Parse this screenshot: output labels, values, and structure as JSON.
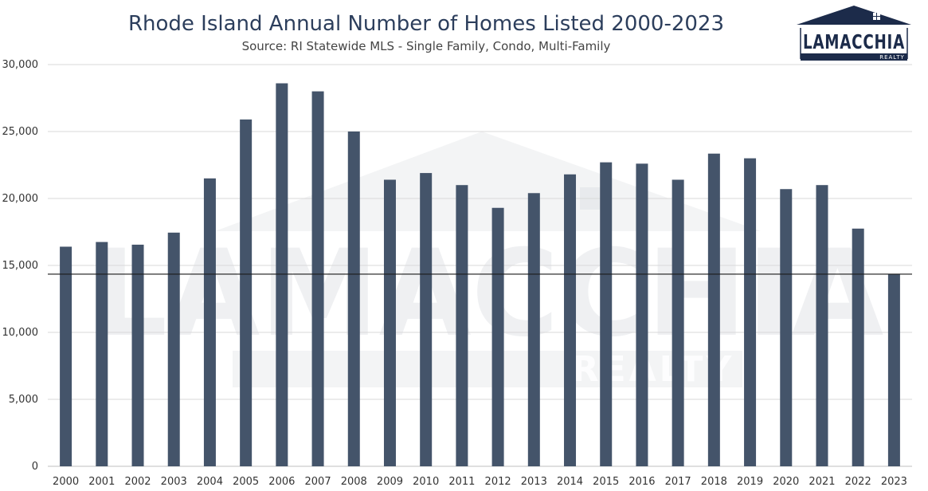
{
  "chart_data": {
    "type": "bar",
    "title": "Rhode Island Annual Number of Homes Listed 2000-2023",
    "subtitle": "Source: RI Statewide MLS - Single Family, Condo, Multi-Family",
    "categories": [
      "2000",
      "2001",
      "2002",
      "2003",
      "2004",
      "2005",
      "2006",
      "2007",
      "2008",
      "2009",
      "2010",
      "2011",
      "2012",
      "2013",
      "2014",
      "2015",
      "2016",
      "2017",
      "2018",
      "2019",
      "2020",
      "2021",
      "2022",
      "2023"
    ],
    "values": [
      16400,
      16750,
      16550,
      17450,
      21500,
      25900,
      28600,
      28000,
      25000,
      21400,
      21900,
      21000,
      19300,
      20400,
      21800,
      22700,
      22600,
      21400,
      23350,
      23000,
      20700,
      21000,
      17750,
      14350
    ],
    "reference_line": 14350,
    "ylim": [
      0,
      30000
    ],
    "yticks": [
      0,
      5000,
      10000,
      15000,
      20000,
      25000,
      30000
    ],
    "ytick_labels": [
      "0",
      "5,000",
      "10,000",
      "15,000",
      "20,000",
      "25,000",
      "30,000"
    ],
    "grid": true,
    "legend": "none",
    "bar_color": "#44546a",
    "xlabel": "",
    "ylabel": ""
  },
  "logo": {
    "name": "LAMACCHIA",
    "sub": "REALTY",
    "color": "#1c2b4a",
    "icon": "house-roof-icon"
  },
  "watermark": {
    "name": "LAMACCHIA",
    "sub": "REALTY"
  }
}
